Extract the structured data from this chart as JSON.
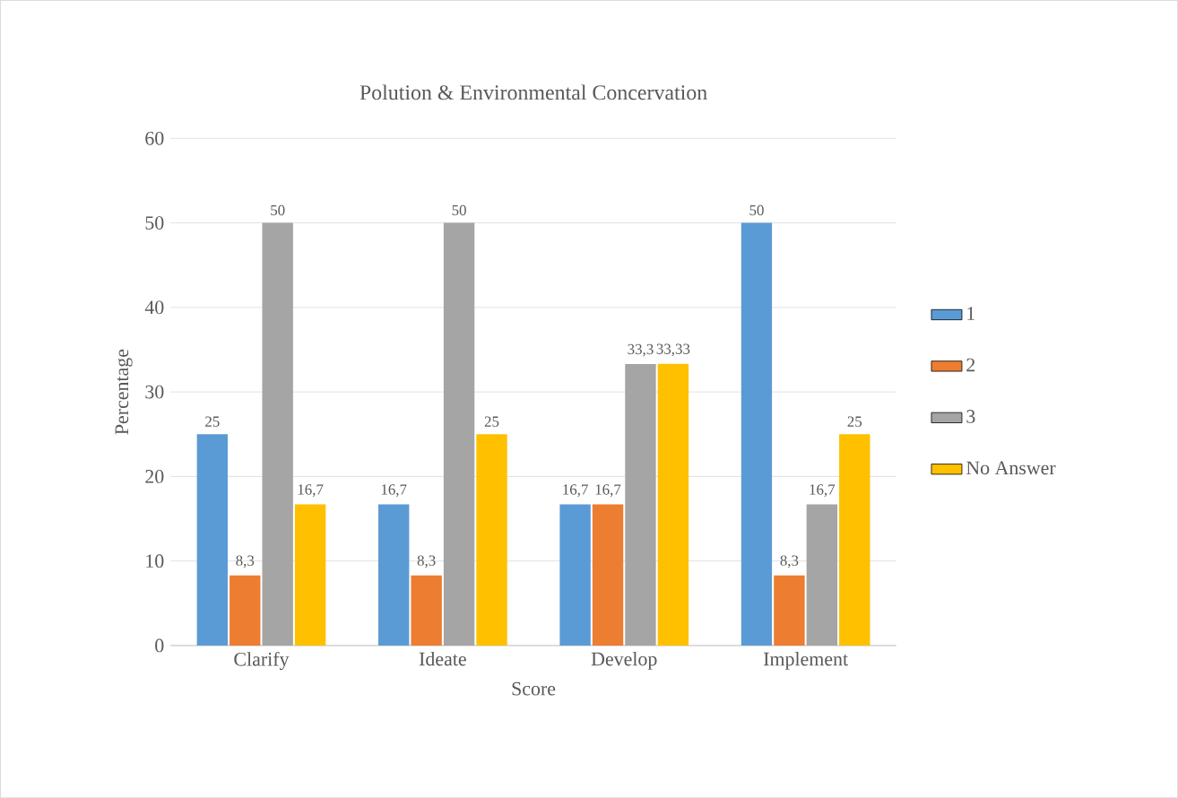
{
  "chart_data": {
    "type": "bar",
    "title": "Polution & Environmental Concervation",
    "xlabel": "Score",
    "ylabel": "Percentage",
    "categories": [
      "Clarify",
      "Ideate",
      "Develop",
      "Implement"
    ],
    "series": [
      {
        "name": "1",
        "color": "#5b9bd5",
        "values": [
          25,
          16.7,
          16.7,
          50
        ],
        "value_labels": [
          "25",
          "16,7",
          "16,7",
          "50"
        ]
      },
      {
        "name": "2",
        "color": "#ed7d31",
        "values": [
          8.3,
          8.3,
          16.7,
          8.3
        ],
        "value_labels": [
          "8,3",
          "8,3",
          "16,7",
          "8,3"
        ]
      },
      {
        "name": "3",
        "color": "#a5a5a5",
        "values": [
          50,
          50,
          33.3,
          16.7
        ],
        "value_labels": [
          "50",
          "50",
          "33,3",
          "16,7"
        ]
      },
      {
        "name": "No Answer",
        "color": "#ffc000",
        "values": [
          16.7,
          25,
          33.33,
          25
        ],
        "value_labels": [
          "16,7",
          "25",
          "33,33",
          "25"
        ]
      }
    ],
    "ylim": [
      0,
      60
    ],
    "yticks": [
      0,
      10,
      20,
      30,
      40,
      50,
      60
    ],
    "grid": "y",
    "legend": "right"
  }
}
